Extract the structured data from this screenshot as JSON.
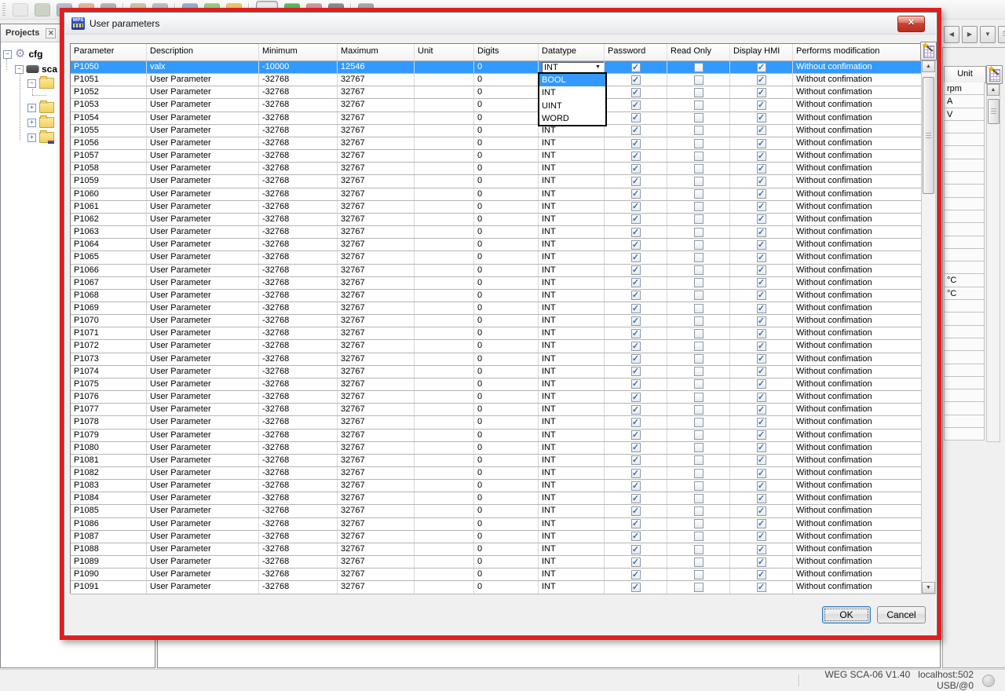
{
  "toolbar": {
    "icons": [
      {
        "name": "new-file-icon",
        "color": "#e9e9e9"
      },
      {
        "name": "open-folder-icon",
        "color": "#c9cfc0"
      },
      {
        "name": "open-project-icon",
        "color": "#aeb8c8"
      },
      {
        "name": "import-folder-icon",
        "color": "#e0b090"
      },
      {
        "name": "save-icon",
        "color": "#a8aeb4"
      },
      {
        "name": "toolbar-separator",
        "color": ""
      },
      {
        "name": "undo-icon",
        "color": "#cdbd9a"
      },
      {
        "name": "redo-icon",
        "color": "#b5b8bc"
      },
      {
        "name": "toolbar-separator",
        "color": ""
      },
      {
        "name": "users-icon",
        "color": "#8fa8cc"
      },
      {
        "name": "build-icon",
        "color": "#8cc878"
      },
      {
        "name": "compile-icon",
        "color": "#e8c25a"
      },
      {
        "name": "toolbar-separator",
        "color": ""
      },
      {
        "name": "monitor-icon",
        "color": "#d0d4d8",
        "pressed": true
      },
      {
        "name": "run-icon",
        "color": "#4eb04e"
      },
      {
        "name": "stop-icon",
        "color": "#c89090"
      },
      {
        "name": "device-icon",
        "color": "#7e8184"
      },
      {
        "name": "toolbar-separator",
        "color": ""
      },
      {
        "name": "tools-icon",
        "color": "#9aa0a6"
      }
    ]
  },
  "projects_panel": {
    "title": "Projects",
    "close_glyph": "✕",
    "tree": {
      "root_label": "cfg",
      "device_label": "sca"
    }
  },
  "right_panel": {
    "nav": [
      {
        "name": "scroll-left-button",
        "glyph": "◀"
      },
      {
        "name": "scroll-right-button",
        "glyph": "▶"
      },
      {
        "name": "window-list-button",
        "glyph": "▼"
      },
      {
        "name": "restore-window-button",
        "glyph": "❐"
      }
    ],
    "unit_column": {
      "header": "Unit",
      "values": [
        "rpm",
        "A",
        "V",
        "",
        "",
        "",
        "",
        "",
        "",
        "",
        "",
        "",
        "",
        "",
        "",
        "°C",
        "°C",
        "",
        "",
        "",
        "",
        "",
        "",
        "",
        "",
        "",
        "",
        ""
      ]
    }
  },
  "statusbar": {
    "app_version": "WEG SCA-06 V1.40",
    "connection": "localhost:502 USB/@0"
  },
  "dialog": {
    "title": "User parameters",
    "columns": [
      "Parameter",
      "Description",
      "Minimum",
      "Maximum",
      "Unit",
      "Digits",
      "Datatype",
      "Password",
      "Read Only",
      "Display HMI",
      "Performs modification"
    ],
    "combo_value": "INT",
    "datatype_options": [
      "BOOL",
      "INT",
      "UINT",
      "WORD"
    ],
    "highlighted_option": "BOOL",
    "ok_label": "OK",
    "cancel_label": "Cancel",
    "rows": [
      {
        "parameter": "P1050",
        "description": "valx",
        "minimum": "-10000",
        "maximum": "12546",
        "unit": "",
        "digits": "0",
        "datatype": "INT",
        "password": true,
        "read_only": false,
        "display_hmi": true,
        "performs_modification": "Without confimation",
        "selected": true
      },
      {
        "parameter": "P1051",
        "description": "User Parameter",
        "minimum": "-32768",
        "maximum": "32767",
        "unit": "",
        "digits": "0",
        "datatype": "INT",
        "password": true,
        "read_only": false,
        "display_hmi": true,
        "performs_modification": "Without confimation"
      },
      {
        "parameter": "P1052",
        "description": "User Parameter",
        "minimum": "-32768",
        "maximum": "32767",
        "unit": "",
        "digits": "0",
        "datatype": "INT",
        "password": true,
        "read_only": false,
        "display_hmi": true,
        "performs_modification": "Without confimation"
      },
      {
        "parameter": "P1053",
        "description": "User Parameter",
        "minimum": "-32768",
        "maximum": "32767",
        "unit": "",
        "digits": "0",
        "datatype": "INT",
        "password": true,
        "read_only": false,
        "display_hmi": true,
        "performs_modification": "Without confimation"
      },
      {
        "parameter": "P1054",
        "description": "User Parameter",
        "minimum": "-32768",
        "maximum": "32767",
        "unit": "",
        "digits": "0",
        "datatype": "INT",
        "password": true,
        "read_only": false,
        "display_hmi": true,
        "performs_modification": "Without confimation"
      },
      {
        "parameter": "P1055",
        "description": "User Parameter",
        "minimum": "-32768",
        "maximum": "32767",
        "unit": "",
        "digits": "0",
        "datatype": "INT",
        "password": true,
        "read_only": false,
        "display_hmi": true,
        "performs_modification": "Without confimation"
      },
      {
        "parameter": "P1056",
        "description": "User Parameter",
        "minimum": "-32768",
        "maximum": "32767",
        "unit": "",
        "digits": "0",
        "datatype": "INT",
        "password": true,
        "read_only": false,
        "display_hmi": true,
        "performs_modification": "Without confimation"
      },
      {
        "parameter": "P1057",
        "description": "User Parameter",
        "minimum": "-32768",
        "maximum": "32767",
        "unit": "",
        "digits": "0",
        "datatype": "INT",
        "password": true,
        "read_only": false,
        "display_hmi": true,
        "performs_modification": "Without confimation"
      },
      {
        "parameter": "P1058",
        "description": "User Parameter",
        "minimum": "-32768",
        "maximum": "32767",
        "unit": "",
        "digits": "0",
        "datatype": "INT",
        "password": true,
        "read_only": false,
        "display_hmi": true,
        "performs_modification": "Without confimation"
      },
      {
        "parameter": "P1059",
        "description": "User Parameter",
        "minimum": "-32768",
        "maximum": "32767",
        "unit": "",
        "digits": "0",
        "datatype": "INT",
        "password": true,
        "read_only": false,
        "display_hmi": true,
        "performs_modification": "Without confimation"
      },
      {
        "parameter": "P1060",
        "description": "User Parameter",
        "minimum": "-32768",
        "maximum": "32767",
        "unit": "",
        "digits": "0",
        "datatype": "INT",
        "password": true,
        "read_only": false,
        "display_hmi": true,
        "performs_modification": "Without confimation"
      },
      {
        "parameter": "P1061",
        "description": "User Parameter",
        "minimum": "-32768",
        "maximum": "32767",
        "unit": "",
        "digits": "0",
        "datatype": "INT",
        "password": true,
        "read_only": false,
        "display_hmi": true,
        "performs_modification": "Without confimation"
      },
      {
        "parameter": "P1062",
        "description": "User Parameter",
        "minimum": "-32768",
        "maximum": "32767",
        "unit": "",
        "digits": "0",
        "datatype": "INT",
        "password": true,
        "read_only": false,
        "display_hmi": true,
        "performs_modification": "Without confimation"
      },
      {
        "parameter": "P1063",
        "description": "User Parameter",
        "minimum": "-32768",
        "maximum": "32767",
        "unit": "",
        "digits": "0",
        "datatype": "INT",
        "password": true,
        "read_only": false,
        "display_hmi": true,
        "performs_modification": "Without confimation"
      },
      {
        "parameter": "P1064",
        "description": "User Parameter",
        "minimum": "-32768",
        "maximum": "32767",
        "unit": "",
        "digits": "0",
        "datatype": "INT",
        "password": true,
        "read_only": false,
        "display_hmi": true,
        "performs_modification": "Without confimation"
      },
      {
        "parameter": "P1065",
        "description": "User Parameter",
        "minimum": "-32768",
        "maximum": "32767",
        "unit": "",
        "digits": "0",
        "datatype": "INT",
        "password": true,
        "read_only": false,
        "display_hmi": true,
        "performs_modification": "Without confimation"
      },
      {
        "parameter": "P1066",
        "description": "User Parameter",
        "minimum": "-32768",
        "maximum": "32767",
        "unit": "",
        "digits": "0",
        "datatype": "INT",
        "password": true,
        "read_only": false,
        "display_hmi": true,
        "performs_modification": "Without confimation"
      },
      {
        "parameter": "P1067",
        "description": "User Parameter",
        "minimum": "-32768",
        "maximum": "32767",
        "unit": "",
        "digits": "0",
        "datatype": "INT",
        "password": true,
        "read_only": false,
        "display_hmi": true,
        "performs_modification": "Without confimation"
      },
      {
        "parameter": "P1068",
        "description": "User Parameter",
        "minimum": "-32768",
        "maximum": "32767",
        "unit": "",
        "digits": "0",
        "datatype": "INT",
        "password": true,
        "read_only": false,
        "display_hmi": true,
        "performs_modification": "Without confimation"
      },
      {
        "parameter": "P1069",
        "description": "User Parameter",
        "minimum": "-32768",
        "maximum": "32767",
        "unit": "",
        "digits": "0",
        "datatype": "INT",
        "password": true,
        "read_only": false,
        "display_hmi": true,
        "performs_modification": "Without confimation"
      },
      {
        "parameter": "P1070",
        "description": "User Parameter",
        "minimum": "-32768",
        "maximum": "32767",
        "unit": "",
        "digits": "0",
        "datatype": "INT",
        "password": true,
        "read_only": false,
        "display_hmi": true,
        "performs_modification": "Without confimation"
      },
      {
        "parameter": "P1071",
        "description": "User Parameter",
        "minimum": "-32768",
        "maximum": "32767",
        "unit": "",
        "digits": "0",
        "datatype": "INT",
        "password": true,
        "read_only": false,
        "display_hmi": true,
        "performs_modification": "Without confimation"
      },
      {
        "parameter": "P1072",
        "description": "User Parameter",
        "minimum": "-32768",
        "maximum": "32767",
        "unit": "",
        "digits": "0",
        "datatype": "INT",
        "password": true,
        "read_only": false,
        "display_hmi": true,
        "performs_modification": "Without confimation"
      },
      {
        "parameter": "P1073",
        "description": "User Parameter",
        "minimum": "-32768",
        "maximum": "32767",
        "unit": "",
        "digits": "0",
        "datatype": "INT",
        "password": true,
        "read_only": false,
        "display_hmi": true,
        "performs_modification": "Without confimation"
      },
      {
        "parameter": "P1074",
        "description": "User Parameter",
        "minimum": "-32768",
        "maximum": "32767",
        "unit": "",
        "digits": "0",
        "datatype": "INT",
        "password": true,
        "read_only": false,
        "display_hmi": true,
        "performs_modification": "Without confimation"
      },
      {
        "parameter": "P1075",
        "description": "User Parameter",
        "minimum": "-32768",
        "maximum": "32767",
        "unit": "",
        "digits": "0",
        "datatype": "INT",
        "password": true,
        "read_only": false,
        "display_hmi": true,
        "performs_modification": "Without confimation"
      },
      {
        "parameter": "P1076",
        "description": "User Parameter",
        "minimum": "-32768",
        "maximum": "32767",
        "unit": "",
        "digits": "0",
        "datatype": "INT",
        "password": true,
        "read_only": false,
        "display_hmi": true,
        "performs_modification": "Without confimation"
      },
      {
        "parameter": "P1077",
        "description": "User Parameter",
        "minimum": "-32768",
        "maximum": "32767",
        "unit": "",
        "digits": "0",
        "datatype": "INT",
        "password": true,
        "read_only": false,
        "display_hmi": true,
        "performs_modification": "Without confimation"
      },
      {
        "parameter": "P1078",
        "description": "User Parameter",
        "minimum": "-32768",
        "maximum": "32767",
        "unit": "",
        "digits": "0",
        "datatype": "INT",
        "password": true,
        "read_only": false,
        "display_hmi": true,
        "performs_modification": "Without confimation"
      },
      {
        "parameter": "P1079",
        "description": "User Parameter",
        "minimum": "-32768",
        "maximum": "32767",
        "unit": "",
        "digits": "0",
        "datatype": "INT",
        "password": true,
        "read_only": false,
        "display_hmi": true,
        "performs_modification": "Without confimation"
      },
      {
        "parameter": "P1080",
        "description": "User Parameter",
        "minimum": "-32768",
        "maximum": "32767",
        "unit": "",
        "digits": "0",
        "datatype": "INT",
        "password": true,
        "read_only": false,
        "display_hmi": true,
        "performs_modification": "Without confimation"
      },
      {
        "parameter": "P1081",
        "description": "User Parameter",
        "minimum": "-32768",
        "maximum": "32767",
        "unit": "",
        "digits": "0",
        "datatype": "INT",
        "password": true,
        "read_only": false,
        "display_hmi": true,
        "performs_modification": "Without confimation"
      },
      {
        "parameter": "P1082",
        "description": "User Parameter",
        "minimum": "-32768",
        "maximum": "32767",
        "unit": "",
        "digits": "0",
        "datatype": "INT",
        "password": true,
        "read_only": false,
        "display_hmi": true,
        "performs_modification": "Without confimation"
      },
      {
        "parameter": "P1083",
        "description": "User Parameter",
        "minimum": "-32768",
        "maximum": "32767",
        "unit": "",
        "digits": "0",
        "datatype": "INT",
        "password": true,
        "read_only": false,
        "display_hmi": true,
        "performs_modification": "Without confimation"
      },
      {
        "parameter": "P1084",
        "description": "User Parameter",
        "minimum": "-32768",
        "maximum": "32767",
        "unit": "",
        "digits": "0",
        "datatype": "INT",
        "password": true,
        "read_only": false,
        "display_hmi": true,
        "performs_modification": "Without confimation"
      },
      {
        "parameter": "P1085",
        "description": "User Parameter",
        "minimum": "-32768",
        "maximum": "32767",
        "unit": "",
        "digits": "0",
        "datatype": "INT",
        "password": true,
        "read_only": false,
        "display_hmi": true,
        "performs_modification": "Without confimation"
      },
      {
        "parameter": "P1086",
        "description": "User Parameter",
        "minimum": "-32768",
        "maximum": "32767",
        "unit": "",
        "digits": "0",
        "datatype": "INT",
        "password": true,
        "read_only": false,
        "display_hmi": true,
        "performs_modification": "Without confimation"
      },
      {
        "parameter": "P1087",
        "description": "User Parameter",
        "minimum": "-32768",
        "maximum": "32767",
        "unit": "",
        "digits": "0",
        "datatype": "INT",
        "password": true,
        "read_only": false,
        "display_hmi": true,
        "performs_modification": "Without confimation"
      },
      {
        "parameter": "P1088",
        "description": "User Parameter",
        "minimum": "-32768",
        "maximum": "32767",
        "unit": "",
        "digits": "0",
        "datatype": "INT",
        "password": true,
        "read_only": false,
        "display_hmi": true,
        "performs_modification": "Without confimation"
      },
      {
        "parameter": "P1089",
        "description": "User Parameter",
        "minimum": "-32768",
        "maximum": "32767",
        "unit": "",
        "digits": "0",
        "datatype": "INT",
        "password": true,
        "read_only": false,
        "display_hmi": true,
        "performs_modification": "Without confimation"
      },
      {
        "parameter": "P1090",
        "description": "User Parameter",
        "minimum": "-32768",
        "maximum": "32767",
        "unit": "",
        "digits": "0",
        "datatype": "INT",
        "password": true,
        "read_only": false,
        "display_hmi": true,
        "performs_modification": "Without confimation"
      },
      {
        "parameter": "P1091",
        "description": "User Parameter",
        "minimum": "-32768",
        "maximum": "32767",
        "unit": "",
        "digits": "0",
        "datatype": "INT",
        "password": true,
        "read_only": false,
        "display_hmi": true,
        "performs_modification": "Without confimation"
      }
    ]
  }
}
